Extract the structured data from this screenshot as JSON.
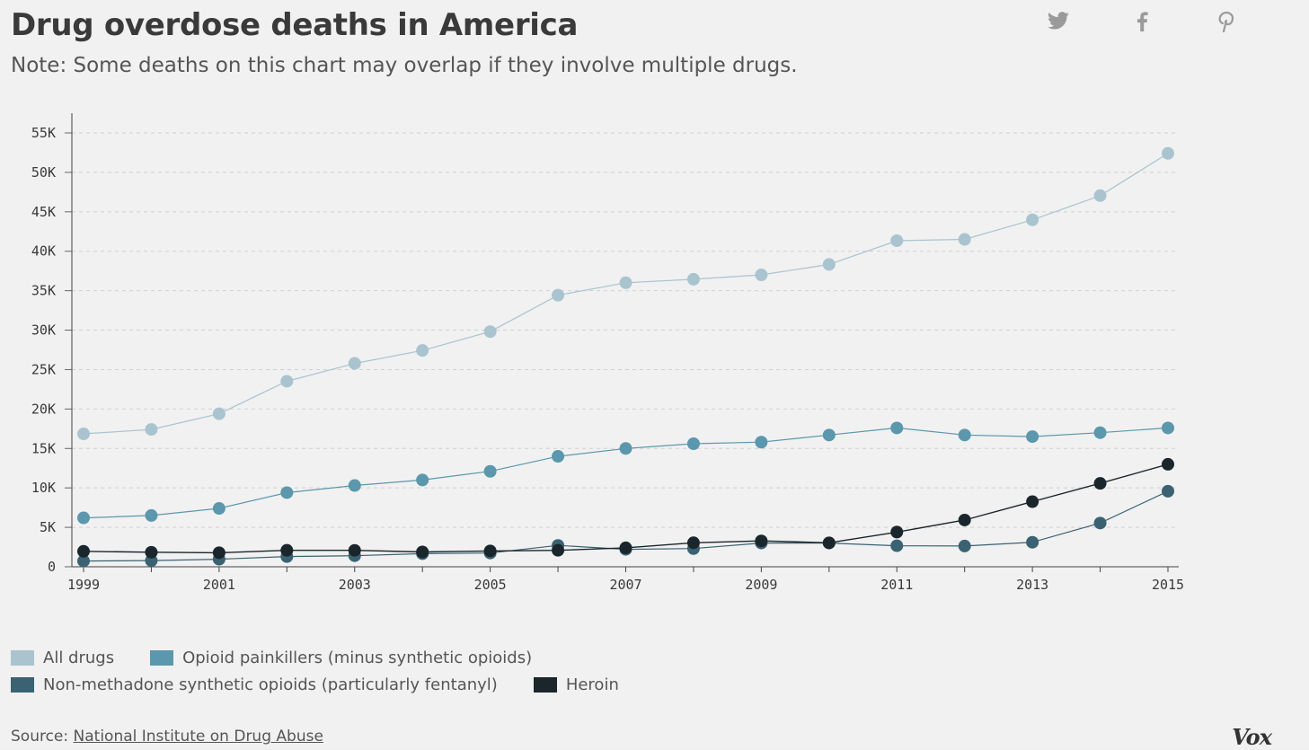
{
  "header": {
    "title": "Drug overdose deaths in America",
    "subtitle": "Note: Some deaths on this chart may overlap if they involve multiple drugs."
  },
  "share": {
    "icons": [
      "twitter-icon",
      "facebook-icon",
      "pinterest-icon"
    ]
  },
  "footer": {
    "source_prefix": "Source:",
    "source_link": "National Institute on Drug Abuse",
    "brand": "Vox"
  },
  "legend_items": [
    {
      "label": "All drugs",
      "color": "#a9c4cf"
    },
    {
      "label": "Opioid painkillers (minus synthetic opioids)",
      "color": "#5b97ad"
    },
    {
      "label": "Non-methadone synthetic opioids (particularly fentanyl)",
      "color": "#3a6273"
    },
    {
      "label": "Heroin",
      "color": "#1a262c"
    }
  ],
  "chart_data": {
    "type": "line",
    "x": [
      1999,
      2000,
      2001,
      2002,
      2003,
      2004,
      2005,
      2006,
      2007,
      2008,
      2009,
      2010,
      2011,
      2012,
      2013,
      2014,
      2015
    ],
    "x_tick_labels": [
      "1999",
      "2001",
      "2003",
      "2005",
      "2007",
      "2009",
      "2011",
      "2013",
      "2015"
    ],
    "y_ticks": [
      0,
      5000,
      10000,
      15000,
      20000,
      25000,
      30000,
      35000,
      40000,
      45000,
      50000,
      55000
    ],
    "y_tick_labels": [
      "0",
      "5K",
      "10K",
      "15K",
      "20K",
      "25K",
      "30K",
      "35K",
      "40K",
      "45K",
      "50K",
      "55K"
    ],
    "ylim": [
      0,
      55000
    ],
    "xlim": [
      1999,
      2015
    ],
    "grid": "horizontal dashed",
    "legend_position": "bottom",
    "series": [
      {
        "name": "All drugs",
        "color": "#a9c4cf",
        "values": [
          16849,
          17415,
          19394,
          23518,
          25785,
          27424,
          29813,
          34425,
          36010,
          36450,
          37004,
          38329,
          41340,
          41502,
          43982,
          47055,
          52404
        ]
      },
      {
        "name": "Opioid painkillers (minus synthetic opioids)",
        "color": "#5b97ad",
        "values": [
          6200,
          6500,
          7400,
          9400,
          10300,
          11000,
          12100,
          14000,
          15000,
          15600,
          15800,
          16700,
          17600,
          16700,
          16500,
          17000,
          17600
        ]
      },
      {
        "name": "Non-methadone synthetic opioids (particularly fentanyl)",
        "color": "#3a6273",
        "values": [
          730,
          782,
          957,
          1295,
          1400,
          1664,
          1742,
          2707,
          2213,
          2306,
          3007,
          3007,
          2666,
          2628,
          3105,
          5544,
          9580
        ]
      },
      {
        "name": "Heroin",
        "color": "#1a262c",
        "values": [
          1960,
          1842,
          1779,
          2089,
          2080,
          1878,
          2009,
          2088,
          2399,
          3041,
          3278,
          3036,
          4397,
          5925,
          8257,
          10574,
          12989
        ]
      }
    ]
  }
}
